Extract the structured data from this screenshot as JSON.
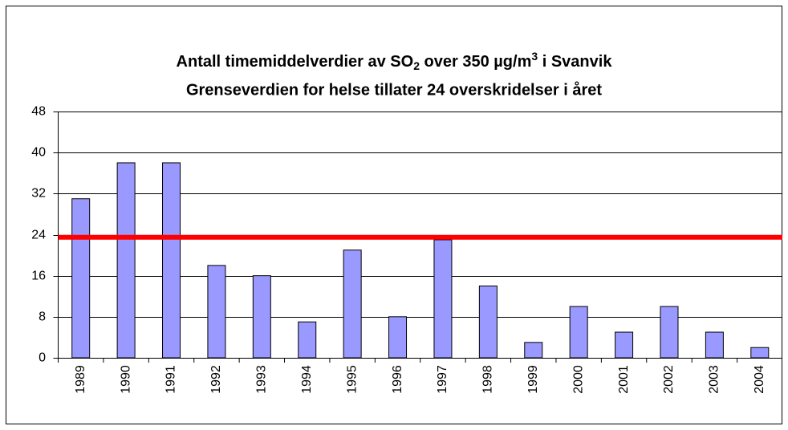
{
  "chart_data": {
    "type": "bar",
    "title": [
      "Antall timemiddelverdier av SO",
      "2",
      " over 350 µg/m",
      "3",
      " i Svanvik"
    ],
    "subtitle": "Grenseverdien for helse tillater 24 overskridelser i året",
    "categories": [
      "1989",
      "1990",
      "1991",
      "1992",
      "1993",
      "1994",
      "1995",
      "1996",
      "1997",
      "1998",
      "1999",
      "2000",
      "2001",
      "2002",
      "2003",
      "2004"
    ],
    "values": [
      31,
      38,
      38,
      18,
      16,
      7,
      21,
      8,
      23,
      14,
      3,
      10,
      5,
      10,
      5,
      2
    ],
    "color": "#9999ff",
    "reference_line": {
      "value": 23.5,
      "color": "#ff0000"
    },
    "ylim": [
      0,
      48
    ],
    "yticks": [
      0,
      8,
      16,
      24,
      32,
      40,
      48
    ],
    "grid": true
  }
}
